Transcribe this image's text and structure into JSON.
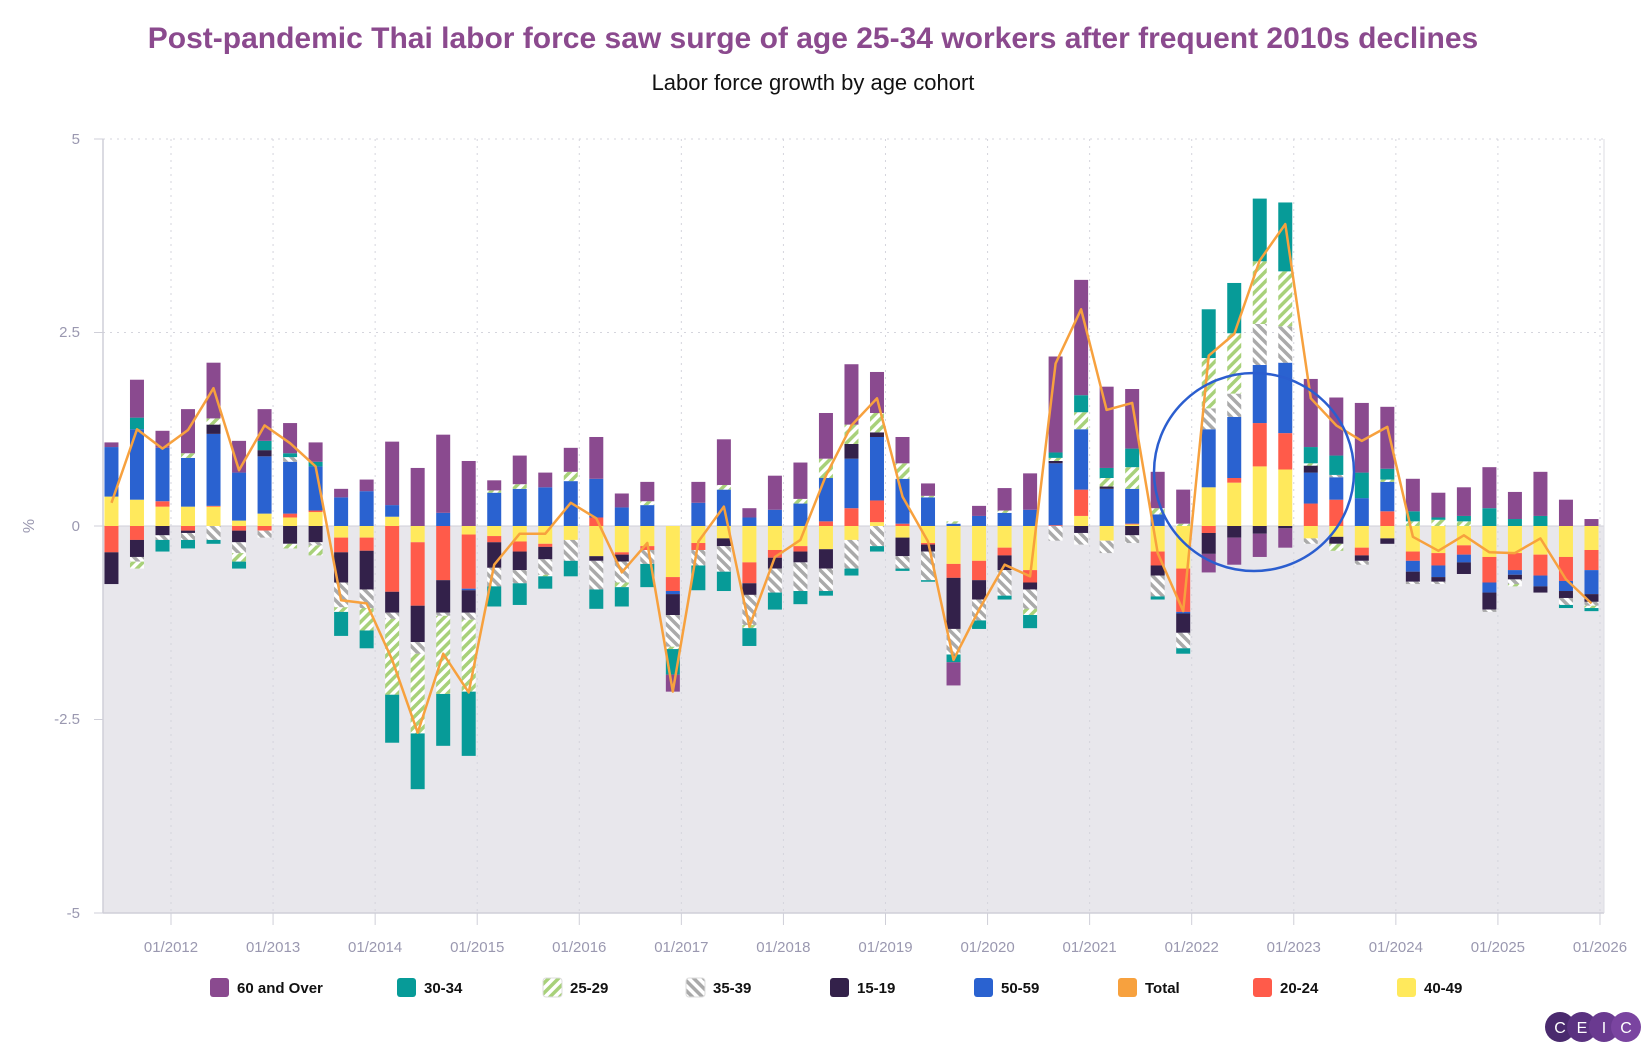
{
  "chart_data": {
    "type": "bar",
    "stacked": true,
    "title": "Post-pandemic Thai labor force saw surge of age 25-34 workers after frequent 2010s declines",
    "subtitle": "Labor force growth by age cohort",
    "ylabel": "%",
    "ylim": [
      -5,
      5
    ],
    "y_ticks": [
      "5",
      "2.5",
      "0",
      "-2.5",
      "-5"
    ],
    "x_ticks": [
      "01/2012",
      "01/2013",
      "01/2014",
      "01/2015",
      "01/2016",
      "01/2017",
      "01/2018",
      "01/2019",
      "01/2020",
      "01/2021",
      "01/2022",
      "01/2023",
      "01/2024",
      "01/2025",
      "01/2026"
    ],
    "grid": true,
    "legend_position": "bottom",
    "annotation": "circle-highlight-2022",
    "x": [
      "2011-06",
      "2011-09",
      "2011-12",
      "2012-03",
      "2012-06",
      "2012-09",
      "2012-12",
      "2013-03",
      "2013-06",
      "2013-09",
      "2013-12",
      "2014-03",
      "2014-06",
      "2014-09",
      "2014-12",
      "2015-03",
      "2015-06",
      "2015-09",
      "2015-12",
      "2016-03",
      "2016-06",
      "2016-09",
      "2016-12",
      "2017-03",
      "2017-06",
      "2017-09",
      "2017-12",
      "2018-03",
      "2018-06",
      "2018-09",
      "2018-12",
      "2019-03",
      "2019-06",
      "2019-09",
      "2019-12",
      "2020-03",
      "2020-06",
      "2020-09",
      "2020-12",
      "2021-03",
      "2021-06",
      "2021-09",
      "2021-12",
      "2022-03",
      "2022-06",
      "2022-09",
      "2022-12",
      "2023-03",
      "2023-06",
      "2023-09",
      "2023-12",
      "2024-03",
      "2024-06",
      "2024-09",
      "2024-12",
      "2025-03",
      "2025-06",
      "2025-09",
      "2025-12"
    ],
    "series": [
      {
        "name": "40-49",
        "color": "#ffe95c",
        "pattern": "solid",
        "values": [
          0.38,
          0.34,
          0.25,
          0.25,
          0.25,
          0.07,
          0.16,
          0.11,
          0.18,
          -0.15,
          -0.15,
          0.12,
          -0.21,
          0,
          -0.11,
          -0.13,
          -0.2,
          -0.23,
          -0.18,
          -0.39,
          -0.34,
          -0.26,
          -0.66,
          -0.22,
          -0.16,
          -0.47,
          -0.31,
          -0.26,
          -0.3,
          -0.18,
          0.05,
          -0.15,
          -0.22,
          -0.49,
          -0.45,
          -0.28,
          -0.57,
          0,
          0.13,
          -0.19,
          0.02,
          -0.33,
          -0.55,
          0.5,
          0.56,
          0.77,
          0.73,
          -0.16,
          -0.14,
          -0.28,
          -0.16,
          -0.33,
          -0.35,
          -0.25,
          -0.4,
          -0.35,
          -0.37,
          -0.4,
          -0.31
        ]
      },
      {
        "name": "20-24",
        "color": "#ff5b4a",
        "pattern": "solid",
        "values": [
          -0.34,
          -0.18,
          0.07,
          -0.06,
          0.01,
          -0.06,
          -0.06,
          0.05,
          0.02,
          -0.19,
          -0.17,
          -0.85,
          -0.82,
          -0.7,
          -0.7,
          -0.08,
          -0.13,
          -0.04,
          0,
          0.11,
          -0.03,
          -0.05,
          -0.18,
          -0.09,
          0,
          -0.27,
          -0.1,
          -0.07,
          0.06,
          0.23,
          0.28,
          0.03,
          -0.02,
          -0.18,
          -0.25,
          -0.1,
          -0.16,
          0.01,
          0.34,
          0,
          0.01,
          -0.18,
          -0.56,
          -0.09,
          0.06,
          0.56,
          0.47,
          0.29,
          0.34,
          -0.1,
          0.19,
          -0.12,
          -0.16,
          -0.12,
          -0.33,
          -0.22,
          -0.27,
          -0.31,
          -0.26
        ]
      },
      {
        "name": "50-59",
        "color": "#2a62d0",
        "pattern": "solid",
        "values": [
          0.64,
          0.91,
          0.69,
          0.63,
          0.93,
          0.62,
          0.74,
          0.67,
          0.57,
          0.37,
          0.45,
          0.15,
          0,
          0.17,
          -0.02,
          0.43,
          0.48,
          0.5,
          0.58,
          0.5,
          0.24,
          0.27,
          -0.04,
          0.3,
          0.47,
          0.11,
          0.21,
          0.29,
          0.56,
          0.64,
          0.82,
          0.58,
          0.37,
          0.03,
          0.13,
          0.17,
          0.21,
          0.8,
          0.78,
          0.48,
          0.45,
          0.15,
          -0.02,
          0.75,
          0.79,
          0.75,
          0.91,
          0.4,
          0.29,
          0.36,
          0.38,
          -0.14,
          -0.15,
          -0.1,
          -0.13,
          -0.06,
          -0.14,
          -0.13,
          -0.31
        ]
      },
      {
        "name": "15-19",
        "color": "#33214a",
        "pattern": "solid",
        "values": [
          -0.41,
          -0.22,
          -0.12,
          -0.03,
          0.12,
          -0.15,
          0.08,
          -0.23,
          -0.21,
          -0.39,
          -0.5,
          -0.27,
          -0.47,
          -0.42,
          -0.29,
          -0.33,
          -0.24,
          -0.16,
          0,
          -0.06,
          -0.09,
          0,
          -0.27,
          0,
          -0.1,
          -0.15,
          -0.14,
          -0.14,
          -0.25,
          0.19,
          0.06,
          -0.24,
          -0.09,
          -0.66,
          -0.25,
          -0.19,
          -0.09,
          0.03,
          -0.09,
          0.03,
          -0.12,
          -0.13,
          -0.25,
          -0.27,
          -0.15,
          -0.1,
          -0.03,
          0.09,
          -0.09,
          -0.07,
          -0.07,
          -0.13,
          -0.06,
          -0.15,
          -0.22,
          -0.06,
          -0.08,
          -0.09,
          -0.1
        ]
      },
      {
        "name": "35-39",
        "color": "#aaaaaa",
        "pattern": "hatch-forward",
        "values": [
          0,
          -0.06,
          -0.06,
          -0.09,
          -0.18,
          -0.14,
          -0.09,
          0.06,
          -0.04,
          -0.32,
          -0.24,
          -0.08,
          -0.15,
          -0.04,
          -0.09,
          -0.24,
          -0.17,
          -0.2,
          -0.27,
          -0.37,
          -0.27,
          -0.18,
          -0.41,
          -0.2,
          -0.33,
          -0.39,
          -0.31,
          -0.37,
          -0.29,
          -0.37,
          -0.26,
          -0.16,
          -0.37,
          -0.33,
          -0.27,
          -0.33,
          -0.25,
          -0.19,
          -0.15,
          -0.16,
          -0.1,
          -0.27,
          -0.2,
          0.27,
          0.3,
          0.53,
          0.47,
          -0.07,
          0.03,
          -0.05,
          0,
          -0.03,
          -0.03,
          0,
          -0.03,
          -0.06,
          0,
          -0.09,
          -0.05
        ]
      },
      {
        "name": "25-29",
        "color": "#a8d17a",
        "pattern": "hatch-back",
        "values": [
          0,
          -0.09,
          0,
          0.06,
          0.08,
          -0.11,
          0,
          -0.06,
          -0.13,
          -0.06,
          -0.29,
          -0.98,
          -1.03,
          -1.01,
          -0.93,
          0.03,
          0.06,
          -0.02,
          0.12,
          0,
          -0.06,
          0.05,
          -0.03,
          0,
          0.06,
          -0.04,
          0,
          0.06,
          0.25,
          0.25,
          0.25,
          0.2,
          0.02,
          0.03,
          0,
          0.03,
          -0.08,
          0.04,
          0.22,
          0.11,
          0.28,
          0.08,
          0.03,
          0.65,
          0.78,
          0.81,
          0.71,
          0.03,
          -0.09,
          0,
          0.03,
          0.06,
          0.08,
          0.06,
          0,
          -0.03,
          0,
          0,
          -0.03
        ]
      },
      {
        "name": "30-34",
        "color": "#079b98",
        "pattern": "solid",
        "values": [
          0,
          0.15,
          -0.15,
          -0.11,
          -0.05,
          -0.09,
          0.12,
          0.05,
          0.06,
          -0.31,
          -0.23,
          -0.62,
          -0.72,
          -0.67,
          -0.83,
          -0.26,
          -0.28,
          -0.16,
          -0.2,
          -0.25,
          -0.25,
          -0.3,
          -0.33,
          -0.32,
          -0.25,
          -0.23,
          -0.22,
          -0.17,
          -0.06,
          -0.09,
          -0.07,
          -0.03,
          -0.02,
          -0.1,
          -0.11,
          -0.05,
          -0.17,
          0.07,
          0.22,
          0.13,
          0.24,
          -0.04,
          -0.07,
          0.63,
          0.65,
          0.81,
          0.89,
          0.21,
          0.25,
          0.33,
          0.14,
          0.13,
          0.03,
          0.07,
          0.23,
          0.09,
          0.13,
          -0.04,
          -0.04
        ]
      },
      {
        "name": "60 and Over",
        "color": "#8a4a8f",
        "pattern": "solid",
        "values": [
          0.06,
          0.49,
          0.22,
          0.57,
          0.72,
          0.41,
          0.41,
          0.39,
          0.25,
          0.11,
          0.15,
          0.82,
          0.75,
          1.01,
          0.84,
          0.13,
          0.37,
          0.19,
          0.31,
          0.54,
          0.18,
          0.25,
          -0.22,
          0.27,
          0.59,
          0.12,
          0.44,
          0.47,
          0.59,
          0.78,
          0.53,
          0.34,
          0.16,
          -0.3,
          0.13,
          0.29,
          0.47,
          1.24,
          1.49,
          1.05,
          0.77,
          0.47,
          0.44,
          -0.24,
          -0.35,
          -0.3,
          -0.25,
          0.88,
          0.75,
          0.9,
          0.8,
          0.42,
          0.32,
          0.37,
          0.53,
          0.35,
          0.57,
          0.34,
          0.09
        ]
      }
    ],
    "total": {
      "name": "Total",
      "color": "#f7a13e",
      "type": "line",
      "values": [
        0.3,
        1.25,
        1.0,
        1.24,
        1.78,
        0.72,
        1.3,
        1.07,
        0.77,
        -0.96,
        -1.0,
        -1.73,
        -2.67,
        -1.65,
        -2.15,
        -0.5,
        -0.1,
        -0.1,
        0.3,
        0.1,
        -0.6,
        -0.22,
        -2.14,
        -0.2,
        0.25,
        -1.3,
        -0.4,
        -0.18,
        0.65,
        1.3,
        1.65,
        0.38,
        -0.2,
        -1.73,
        -1.08,
        -0.5,
        -0.65,
        2.1,
        2.8,
        1.5,
        1.59,
        -0.35,
        -1.1,
        2.2,
        2.48,
        3.43,
        3.9,
        1.65,
        1.3,
        1.1,
        1.28,
        -0.14,
        -0.32,
        -0.12,
        -0.34,
        -0.35,
        -0.16,
        -0.69,
        -1.0
      ]
    },
    "legend": [
      {
        "label": "60 and Over",
        "color": "#8a4a8f",
        "pattern": "solid"
      },
      {
        "label": "30-34",
        "color": "#079b98",
        "pattern": "solid"
      },
      {
        "label": "25-29",
        "color": "#a8d17a",
        "pattern": "hatch-back"
      },
      {
        "label": "35-39",
        "color": "#aaaaaa",
        "pattern": "hatch-forward"
      },
      {
        "label": "15-19",
        "color": "#33214a",
        "pattern": "solid"
      },
      {
        "label": "50-59",
        "color": "#2a62d0",
        "pattern": "solid"
      },
      {
        "label": "Total",
        "color": "#f7a13e",
        "pattern": "solid"
      },
      {
        "label": "20-24",
        "color": "#ff5b4a",
        "pattern": "solid"
      },
      {
        "label": "40-49",
        "color": "#ffe95c",
        "pattern": "solid"
      }
    ]
  },
  "branding": {
    "logo_letters": [
      "C",
      "E",
      "I",
      "C"
    ],
    "logo_colors": [
      "#4a2a6e",
      "#5a3280",
      "#6a3a90",
      "#7a44a0"
    ]
  },
  "annotation_color": "#2b5ecf"
}
